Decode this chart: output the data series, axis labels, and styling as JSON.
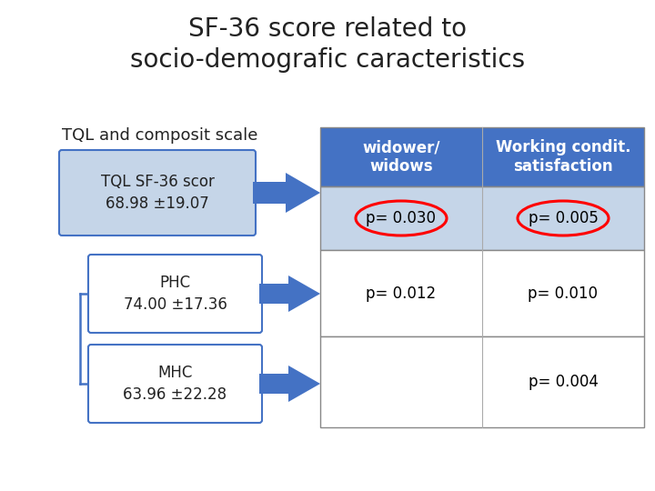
{
  "title_line1": "SF-36 score related to",
  "title_line2": "socio-demografic caracteristics",
  "title_fontsize": 20,
  "bg_color": "#ffffff",
  "tql_label": "TQL and composit scale",
  "col1_header_line1": "widower/",
  "col1_header_line2": "widows",
  "col2_header_line1": "Working condit.",
  "col2_header_line2": "satisfaction",
  "header_bg": "#4472C4",
  "header_text_color": "#ffffff",
  "row1_bg": "#C5D5E8",
  "row2_bg": "#ffffff",
  "row3_bg": "#ffffff",
  "box1_label_line1": "TQL SF-36 scor",
  "box1_label_line2": "68.98 ±19.07",
  "box1_bg": "#C5D5E8",
  "box1_border": "#4472C4",
  "box2_label_line1": "PHC",
  "box2_label_line2": "74.00 ±17.36",
  "box2_bg": "#ffffff",
  "box2_border": "#4472C4",
  "box3_label_line1": "MHC",
  "box3_label_line2": "63.96 ±22.28",
  "box3_bg": "#ffffff",
  "box3_border": "#4472C4",
  "arrow_color": "#4472C4",
  "row1_col1": "p= 0.030",
  "row1_col2": "p= 0.005",
  "row2_col1": "p= 0.012",
  "row2_col2": "p= 0.010",
  "row3_col1": "",
  "row3_col2": "p= 0.004",
  "circle_color": "#FF0000",
  "cell_text_color": "#000000",
  "table_border_color": "#808080",
  "font_size_box": 12,
  "font_size_cell": 12,
  "font_size_header": 12
}
